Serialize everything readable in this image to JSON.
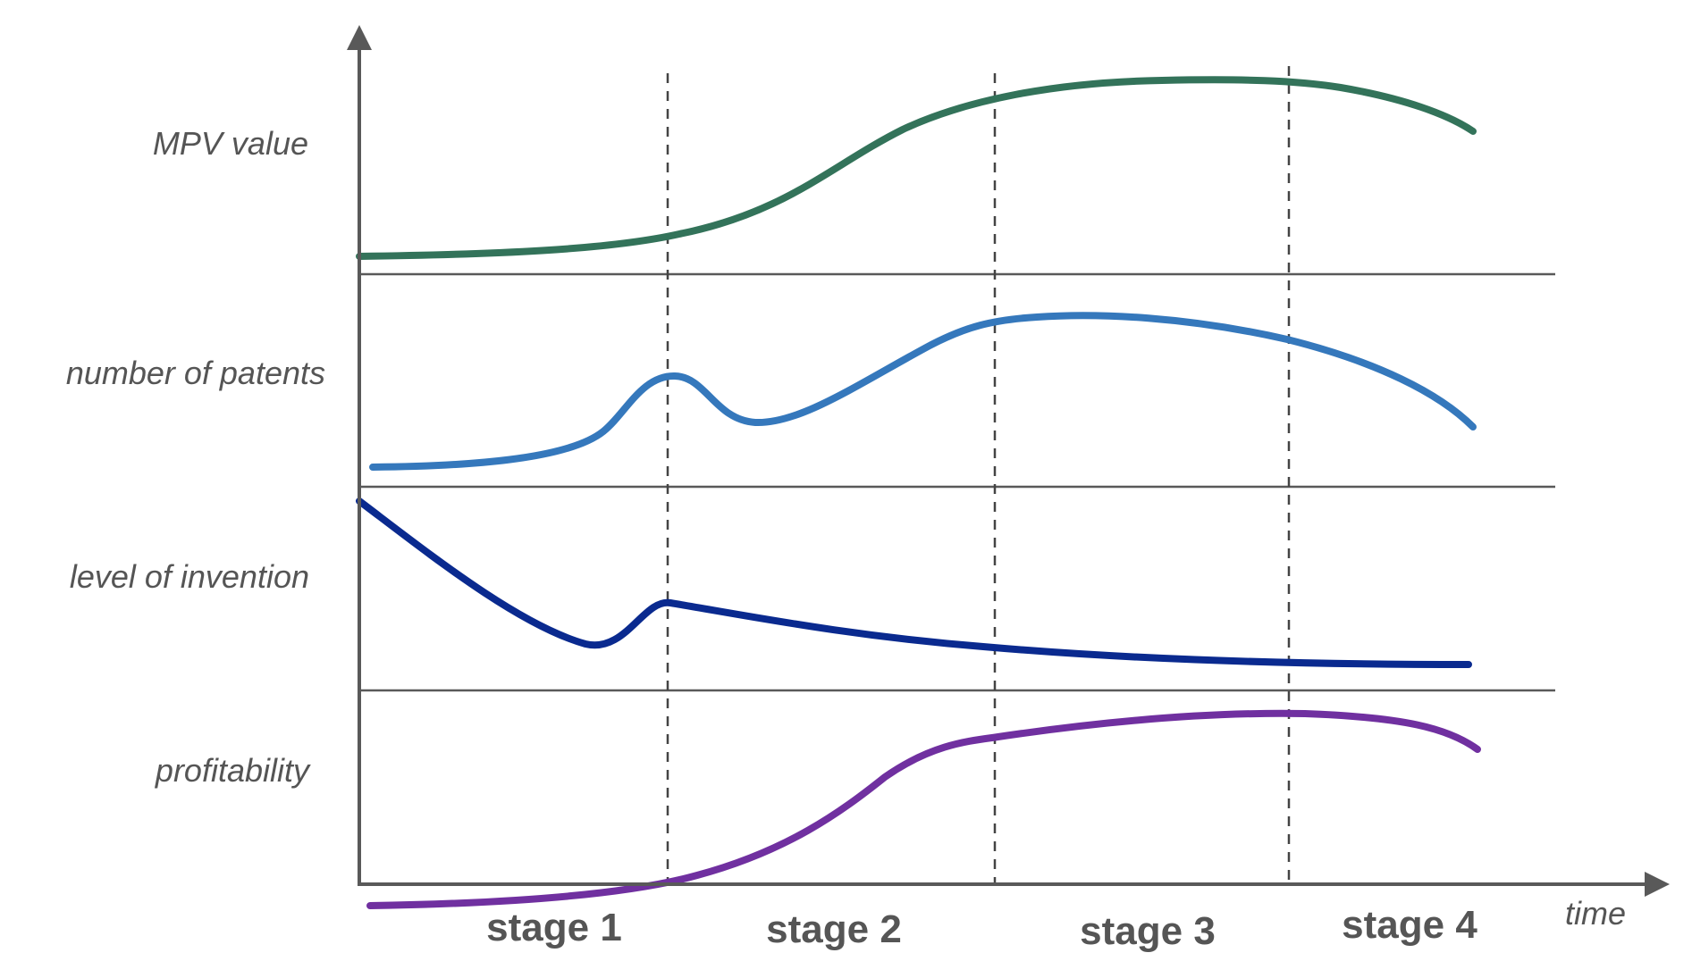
{
  "rows": [
    {
      "label": "MPV value",
      "color": "#33735A"
    },
    {
      "label": "number of patents",
      "color": "#3578BC"
    },
    {
      "label": "level of invention",
      "color": "#0A2A8F"
    },
    {
      "label": "profitability",
      "color": "#7030A0"
    }
  ],
  "stages": [
    "stage 1",
    "stage 2",
    "stage 3",
    "stage 4"
  ],
  "x_axis_label": "time",
  "axis_color": "#595959"
}
